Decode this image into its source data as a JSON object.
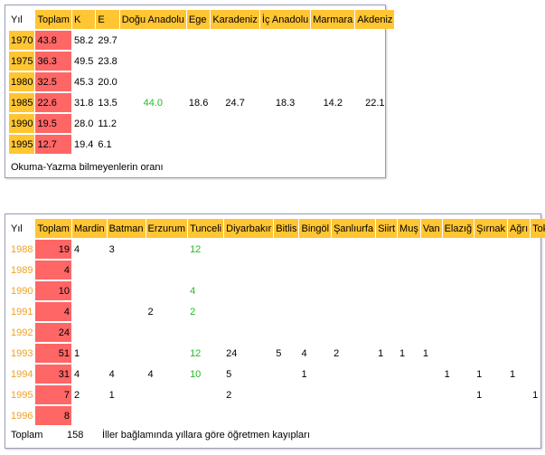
{
  "table1": {
    "header": [
      "Yıl",
      "Toplam",
      "K",
      "E",
      "Doğu Anadolu",
      "Ege",
      "Karadeniz",
      "İç Anadolu",
      "Marmara",
      "Akdeniz"
    ],
    "rows": [
      [
        "1970",
        "43.8",
        "58.2",
        "29.7",
        null,
        null,
        null,
        null,
        null,
        null
      ],
      [
        "1975",
        "36.3",
        "49.5",
        "23.8",
        null,
        null,
        null,
        null,
        null,
        null
      ],
      [
        "1980",
        "32.5",
        "45.3",
        "20.0",
        null,
        null,
        null,
        null,
        null,
        null
      ],
      [
        "1985",
        "22.6",
        "31.8",
        "13.5",
        "44.0",
        "18.6",
        "24.7",
        "18.3",
        "14.2",
        "22.1"
      ],
      [
        "1990",
        "19.5",
        "28.0",
        "11.2",
        null,
        null,
        null,
        null,
        null,
        null
      ],
      [
        "1995",
        "12.7",
        "19.4",
        "6.1",
        null,
        null,
        null,
        null,
        null,
        null
      ]
    ],
    "caption": "Okuma-Yazma bilmeyenlerin oranı"
  },
  "table2": {
    "header": [
      "Yıl",
      "Toplam",
      "Mardin",
      "Batman",
      "Erzurum",
      "Tunceli",
      "Diyarbakır",
      "Bitlis",
      "Bingöl",
      "Şanlıurfa",
      "Siirt",
      "Muş",
      "Van",
      "Elazığ",
      "Şırnak",
      "Ağrı",
      "Tokat"
    ],
    "rows": [
      [
        "1988",
        "19",
        "4",
        "3",
        null,
        "12",
        null,
        null,
        null,
        null,
        null,
        null,
        null,
        null,
        null,
        null,
        null
      ],
      [
        "1989",
        "4",
        null,
        null,
        null,
        null,
        null,
        null,
        null,
        null,
        null,
        null,
        null,
        null,
        null,
        null,
        null
      ],
      [
        "1990",
        "10",
        null,
        null,
        null,
        "4",
        null,
        null,
        null,
        null,
        null,
        null,
        null,
        null,
        null,
        null,
        null
      ],
      [
        "1991",
        "4",
        null,
        null,
        "2",
        "2",
        null,
        null,
        null,
        null,
        null,
        null,
        null,
        null,
        null,
        null,
        null
      ],
      [
        "1992",
        "24",
        null,
        null,
        null,
        null,
        null,
        null,
        null,
        null,
        null,
        null,
        null,
        null,
        null,
        null,
        null
      ],
      [
        "1993",
        "51",
        "1",
        null,
        null,
        "12",
        "24",
        "5",
        "4",
        "2",
        "1",
        "1",
        "1",
        null,
        null,
        null,
        null
      ],
      [
        "1994",
        "31",
        "4",
        "4",
        "4",
        "10",
        "5",
        null,
        "1",
        null,
        null,
        null,
        null,
        "1",
        "1",
        "1",
        null
      ],
      [
        "1995",
        "7",
        "2",
        "1",
        null,
        null,
        "2",
        null,
        null,
        null,
        null,
        null,
        null,
        null,
        "1",
        null,
        "1"
      ],
      [
        "1996",
        "8",
        null,
        null,
        null,
        null,
        null,
        null,
        null,
        null,
        null,
        null,
        null,
        null,
        null,
        null,
        null
      ]
    ],
    "footer": [
      "Toplam",
      "158",
      "İller bağlamında yıllara göre öğretmen kayıpları"
    ]
  }
}
